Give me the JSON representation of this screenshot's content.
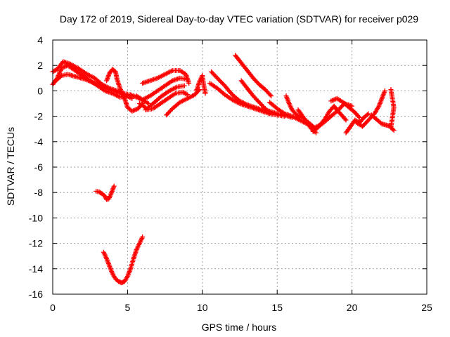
{
  "chart_data": {
    "type": "scatter",
    "title": "Day 172 of 2019, Sidereal Day-to-day VTEC variation (SDTVAR) for receiver p029",
    "xlabel": "GPS time / hours",
    "ylabel": "SDTVAR / TECUs",
    "xlim": [
      0,
      25
    ],
    "ylim": [
      -16,
      4
    ],
    "xticks": [
      0,
      5,
      10,
      15,
      20,
      25
    ],
    "yticks": [
      -16,
      -14,
      -12,
      -10,
      -8,
      -6,
      -4,
      -2,
      0,
      2,
      4
    ],
    "grid": true,
    "marker": "+",
    "color": "#ff0000",
    "tracks": [
      {
        "name": "track-1",
        "points": [
          [
            0.0,
            0.5
          ],
          [
            0.3,
            1.0
          ],
          [
            0.6,
            1.8
          ],
          [
            1.0,
            2.0
          ],
          [
            1.5,
            1.6
          ],
          [
            2.0,
            1.2
          ],
          [
            2.5,
            0.8
          ],
          [
            3.0,
            0.4
          ],
          [
            3.5,
            0.0
          ],
          [
            4.0,
            -0.2
          ],
          [
            4.5,
            -0.5
          ],
          [
            5.0,
            -0.4
          ]
        ]
      },
      {
        "name": "track-2",
        "points": [
          [
            0.0,
            1.5
          ],
          [
            0.3,
            1.7
          ],
          [
            0.7,
            2.3
          ],
          [
            1.2,
            2.1
          ],
          [
            1.8,
            1.7
          ],
          [
            2.3,
            1.3
          ],
          [
            2.8,
            1.0
          ],
          [
            3.3,
            0.5
          ],
          [
            3.8,
            0.2
          ],
          [
            4.3,
            0.0
          ],
          [
            4.8,
            -0.3
          ],
          [
            5.3,
            -0.6
          ]
        ]
      },
      {
        "name": "track-3",
        "points": [
          [
            0.2,
            0.8
          ],
          [
            0.6,
            1.2
          ],
          [
            1.0,
            1.3
          ],
          [
            1.6,
            1.1
          ],
          [
            2.2,
            0.9
          ],
          [
            2.8,
            0.6
          ],
          [
            3.4,
            0.3
          ],
          [
            4.0,
            0.0
          ],
          [
            4.6,
            -0.2
          ],
          [
            5.2,
            -0.3
          ],
          [
            5.8,
            -0.6
          ],
          [
            6.4,
            -1.0
          ]
        ]
      },
      {
        "name": "track-4",
        "points": [
          [
            3.6,
            0.8
          ],
          [
            3.8,
            1.4
          ],
          [
            4.0,
            1.7
          ],
          [
            4.2,
            1.5
          ],
          [
            4.3,
            0.9
          ],
          [
            4.5,
            0.2
          ],
          [
            4.8,
            -0.6
          ],
          [
            5.0,
            -1.3
          ],
          [
            5.3,
            -1.6
          ],
          [
            5.7,
            -1.4
          ],
          [
            6.0,
            -1.0
          ]
        ]
      },
      {
        "name": "track-5",
        "points": [
          [
            6.0,
            0.6
          ],
          [
            6.5,
            0.8
          ],
          [
            7.0,
            1.0
          ],
          [
            7.5,
            1.3
          ],
          [
            8.0,
            1.6
          ],
          [
            8.5,
            1.6
          ],
          [
            8.9,
            1.3
          ],
          [
            9.1,
            0.6
          ]
        ]
      },
      {
        "name": "track-6",
        "points": [
          [
            5.6,
            -0.4
          ],
          [
            6.0,
            -0.7
          ],
          [
            6.5,
            -0.4
          ],
          [
            7.0,
            0.0
          ],
          [
            7.5,
            0.4
          ],
          [
            8.0,
            0.8
          ],
          [
            8.5,
            1.0
          ],
          [
            9.0,
            0.9
          ]
        ]
      },
      {
        "name": "track-7",
        "points": [
          [
            5.8,
            -1.0
          ],
          [
            6.3,
            -1.4
          ],
          [
            6.8,
            -0.9
          ],
          [
            7.3,
            -0.4
          ],
          [
            7.8,
            0.0
          ],
          [
            8.3,
            0.3
          ],
          [
            8.8,
            0.4
          ]
        ]
      },
      {
        "name": "track-8",
        "points": [
          [
            6.2,
            -1.5
          ],
          [
            6.7,
            -1.4
          ],
          [
            7.2,
            -1.0
          ],
          [
            7.7,
            -0.6
          ],
          [
            8.2,
            -0.2
          ],
          [
            8.7,
            -0.1
          ],
          [
            9.0,
            -0.3
          ]
        ]
      },
      {
        "name": "track-9",
        "points": [
          [
            7.6,
            -1.9
          ],
          [
            8.0,
            -1.4
          ],
          [
            8.5,
            -0.9
          ],
          [
            9.0,
            -0.6
          ],
          [
            9.5,
            -0.3
          ],
          [
            9.8,
            0.1
          ]
        ]
      },
      {
        "name": "track-10",
        "points": [
          [
            9.6,
            0.0
          ],
          [
            9.8,
            0.7
          ],
          [
            10.0,
            1.2
          ],
          [
            10.1,
            0.4
          ],
          [
            10.2,
            -0.2
          ]
        ]
      },
      {
        "name": "track-11",
        "points": [
          [
            10.6,
            1.5
          ],
          [
            11.0,
            1.0
          ],
          [
            11.5,
            0.4
          ],
          [
            12.0,
            -0.3
          ],
          [
            12.5,
            -0.8
          ],
          [
            13.0,
            -1.1
          ],
          [
            13.5,
            -1.3
          ],
          [
            14.0,
            -1.5
          ],
          [
            14.5,
            -1.6
          ],
          [
            15.0,
            -1.8
          ],
          [
            15.5,
            -1.9
          ],
          [
            16.0,
            -2.1
          ]
        ]
      },
      {
        "name": "track-12",
        "points": [
          [
            10.5,
            0.6
          ],
          [
            11.0,
            0.2
          ],
          [
            11.5,
            -0.3
          ],
          [
            12.0,
            -0.7
          ],
          [
            12.5,
            -1.0
          ],
          [
            13.0,
            -1.2
          ],
          [
            13.5,
            -1.4
          ],
          [
            14.0,
            -1.6
          ],
          [
            14.5,
            -1.8
          ],
          [
            15.0,
            -1.9
          ],
          [
            15.5,
            -2.0
          ]
        ]
      },
      {
        "name": "track-13",
        "points": [
          [
            12.2,
            2.8
          ],
          [
            12.6,
            2.2
          ],
          [
            13.0,
            1.6
          ],
          [
            13.4,
            1.0
          ],
          [
            13.8,
            0.5
          ],
          [
            14.2,
            0.1
          ],
          [
            14.6,
            -0.4
          ]
        ]
      },
      {
        "name": "track-14",
        "points": [
          [
            12.6,
            0.8
          ],
          [
            13.0,
            0.2
          ],
          [
            13.4,
            -0.4
          ],
          [
            13.8,
            -0.9
          ],
          [
            14.2,
            -1.4
          ],
          [
            14.6,
            -1.8
          ]
        ]
      },
      {
        "name": "track-15",
        "points": [
          [
            14.5,
            -0.9
          ],
          [
            15.0,
            -1.4
          ],
          [
            15.5,
            -1.8
          ],
          [
            16.0,
            -2.0
          ],
          [
            16.5,
            -2.3
          ],
          [
            17.0,
            -2.6
          ]
        ]
      },
      {
        "name": "track-16",
        "points": [
          [
            15.6,
            -0.4
          ],
          [
            15.8,
            -1.0
          ],
          [
            16.0,
            -1.5
          ],
          [
            16.3,
            -1.9
          ],
          [
            16.6,
            -2.1
          ]
        ]
      },
      {
        "name": "track-17",
        "points": [
          [
            16.4,
            -1.5
          ],
          [
            16.7,
            -2.0
          ],
          [
            17.0,
            -2.5
          ],
          [
            17.3,
            -3.0
          ],
          [
            17.6,
            -3.3
          ]
        ]
      },
      {
        "name": "track-18",
        "points": [
          [
            17.0,
            -2.4
          ],
          [
            17.5,
            -2.9
          ],
          [
            18.0,
            -2.6
          ],
          [
            18.5,
            -2.1
          ],
          [
            19.0,
            -1.6
          ],
          [
            19.5,
            -1.0
          ],
          [
            20.0,
            -1.2
          ]
        ]
      },
      {
        "name": "track-19",
        "points": [
          [
            17.4,
            -3.2
          ],
          [
            17.8,
            -2.8
          ],
          [
            18.2,
            -2.2
          ],
          [
            18.5,
            -1.6
          ],
          [
            18.8,
            -1.2
          ],
          [
            19.0,
            -1.5
          ],
          [
            19.3,
            -1.9
          ],
          [
            19.6,
            -2.3
          ]
        ]
      },
      {
        "name": "track-20",
        "points": [
          [
            18.6,
            -0.8
          ],
          [
            19.0,
            -0.6
          ],
          [
            19.4,
            -0.9
          ],
          [
            19.8,
            -1.3
          ],
          [
            20.2,
            -1.7
          ],
          [
            20.5,
            -2.1
          ]
        ]
      },
      {
        "name": "track-21",
        "points": [
          [
            19.6,
            -3.3
          ],
          [
            19.9,
            -2.8
          ],
          [
            20.2,
            -2.3
          ],
          [
            20.5,
            -2.5
          ],
          [
            20.8,
            -2.1
          ],
          [
            21.1,
            -1.8
          ]
        ]
      },
      {
        "name": "track-22",
        "points": [
          [
            20.3,
            -2.5
          ],
          [
            20.7,
            -2.8
          ],
          [
            21.1,
            -2.3
          ],
          [
            21.5,
            -1.8
          ],
          [
            21.8,
            -1.2
          ],
          [
            22.0,
            -0.6
          ],
          [
            22.2,
            0.0
          ]
        ]
      },
      {
        "name": "track-23",
        "points": [
          [
            21.3,
            -1.9
          ],
          [
            21.7,
            -2.3
          ],
          [
            22.0,
            -2.6
          ],
          [
            22.3,
            -2.7
          ],
          [
            22.6,
            -2.8
          ]
        ]
      },
      {
        "name": "track-24",
        "points": [
          [
            22.6,
            0.1
          ],
          [
            22.7,
            -0.6
          ],
          [
            22.8,
            -1.3
          ],
          [
            22.7,
            -2.1
          ],
          [
            22.6,
            -2.9
          ],
          [
            22.8,
            -3.1
          ]
        ]
      },
      {
        "name": "track-25",
        "points": [
          [
            2.9,
            -7.9
          ],
          [
            3.1,
            -7.95
          ],
          [
            3.3,
            -8.1
          ],
          [
            3.5,
            -8.3
          ],
          [
            3.6,
            -8.55
          ],
          [
            3.75,
            -8.5
          ],
          [
            3.9,
            -8.1
          ],
          [
            4.0,
            -7.8
          ],
          [
            4.1,
            -7.5
          ]
        ]
      },
      {
        "name": "track-26",
        "points": [
          [
            3.4,
            -12.7
          ],
          [
            3.6,
            -13.2
          ],
          [
            3.8,
            -13.8
          ],
          [
            4.0,
            -14.4
          ],
          [
            4.2,
            -14.8
          ],
          [
            4.4,
            -15.0
          ],
          [
            4.6,
            -15.1
          ],
          [
            4.8,
            -15.0
          ],
          [
            5.0,
            -14.6
          ],
          [
            5.2,
            -14.0
          ],
          [
            5.4,
            -13.2
          ],
          [
            5.6,
            -12.5
          ],
          [
            5.8,
            -12.0
          ],
          [
            6.0,
            -11.5
          ]
        ]
      }
    ]
  }
}
